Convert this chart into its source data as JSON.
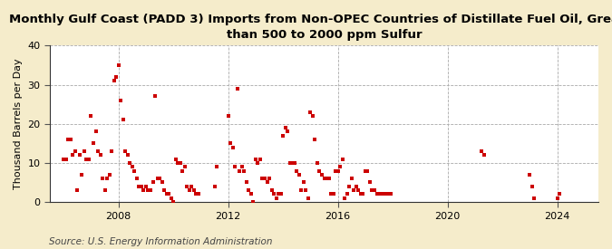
{
  "title": "Monthly Gulf Coast (PADD 3) Imports from Non-OPEC Countries of Distillate Fuel Oil, Greater\nthan 500 to 2000 ppm Sulfur",
  "ylabel": "Thousand Barrels per Day",
  "source": "Source: U.S. Energy Information Administration",
  "background_color": "#f5eccb",
  "plot_bg_color": "#ffffff",
  "marker_color": "#cc0000",
  "marker_size": 9,
  "ylim": [
    0,
    40
  ],
  "yticks": [
    0,
    10,
    20,
    30,
    40
  ],
  "grid_color": "#aaaaaa",
  "grid_style": "--",
  "data_points": [
    [
      2006.0,
      11
    ],
    [
      2006.083,
      11
    ],
    [
      2006.167,
      16
    ],
    [
      2006.25,
      16
    ],
    [
      2006.333,
      12
    ],
    [
      2006.417,
      13
    ],
    [
      2006.5,
      3
    ],
    [
      2006.583,
      12
    ],
    [
      2006.667,
      7
    ],
    [
      2006.75,
      13
    ],
    [
      2006.833,
      11
    ],
    [
      2006.917,
      11
    ],
    [
      2007.0,
      22
    ],
    [
      2007.083,
      15
    ],
    [
      2007.167,
      18
    ],
    [
      2007.25,
      13
    ],
    [
      2007.333,
      12
    ],
    [
      2007.417,
      6
    ],
    [
      2007.5,
      3
    ],
    [
      2007.583,
      6
    ],
    [
      2007.667,
      7
    ],
    [
      2007.75,
      13
    ],
    [
      2007.833,
      31
    ],
    [
      2007.917,
      32
    ],
    [
      2008.0,
      35
    ],
    [
      2008.083,
      26
    ],
    [
      2008.167,
      21
    ],
    [
      2008.25,
      13
    ],
    [
      2008.333,
      12
    ],
    [
      2008.417,
      10
    ],
    [
      2008.5,
      9
    ],
    [
      2008.583,
      8
    ],
    [
      2008.667,
      6
    ],
    [
      2008.75,
      4
    ],
    [
      2008.833,
      4
    ],
    [
      2008.917,
      3
    ],
    [
      2009.0,
      4
    ],
    [
      2009.083,
      3
    ],
    [
      2009.167,
      3
    ],
    [
      2009.25,
      5
    ],
    [
      2009.333,
      27
    ],
    [
      2009.417,
      6
    ],
    [
      2009.5,
      6
    ],
    [
      2009.583,
      5
    ],
    [
      2009.667,
      3
    ],
    [
      2009.75,
      2
    ],
    [
      2009.833,
      2
    ],
    [
      2009.917,
      1
    ],
    [
      2010.0,
      0
    ],
    [
      2010.083,
      11
    ],
    [
      2010.167,
      10
    ],
    [
      2010.25,
      10
    ],
    [
      2010.333,
      8
    ],
    [
      2010.417,
      9
    ],
    [
      2010.5,
      4
    ],
    [
      2010.583,
      3
    ],
    [
      2010.667,
      4
    ],
    [
      2010.75,
      3
    ],
    [
      2010.833,
      2
    ],
    [
      2010.917,
      2
    ],
    [
      2011.5,
      4
    ],
    [
      2011.583,
      9
    ],
    [
      2012.0,
      22
    ],
    [
      2012.083,
      15
    ],
    [
      2012.167,
      14
    ],
    [
      2012.25,
      9
    ],
    [
      2012.333,
      29
    ],
    [
      2012.417,
      8
    ],
    [
      2012.5,
      9
    ],
    [
      2012.583,
      8
    ],
    [
      2012.667,
      5
    ],
    [
      2012.75,
      3
    ],
    [
      2012.833,
      2
    ],
    [
      2012.917,
      0
    ],
    [
      2013.0,
      11
    ],
    [
      2013.083,
      10
    ],
    [
      2013.167,
      11
    ],
    [
      2013.25,
      6
    ],
    [
      2013.333,
      6
    ],
    [
      2013.417,
      5
    ],
    [
      2013.5,
      6
    ],
    [
      2013.583,
      3
    ],
    [
      2013.667,
      2
    ],
    [
      2013.75,
      1
    ],
    [
      2013.833,
      2
    ],
    [
      2013.917,
      2
    ],
    [
      2014.0,
      17
    ],
    [
      2014.083,
      19
    ],
    [
      2014.167,
      18
    ],
    [
      2014.25,
      10
    ],
    [
      2014.333,
      10
    ],
    [
      2014.417,
      10
    ],
    [
      2014.5,
      8
    ],
    [
      2014.583,
      7
    ],
    [
      2014.667,
      3
    ],
    [
      2014.75,
      5
    ],
    [
      2014.833,
      3
    ],
    [
      2014.917,
      1
    ],
    [
      2015.0,
      23
    ],
    [
      2015.083,
      22
    ],
    [
      2015.167,
      16
    ],
    [
      2015.25,
      10
    ],
    [
      2015.333,
      8
    ],
    [
      2015.417,
      7
    ],
    [
      2015.5,
      6
    ],
    [
      2015.583,
      6
    ],
    [
      2015.667,
      6
    ],
    [
      2015.75,
      2
    ],
    [
      2015.833,
      2
    ],
    [
      2015.917,
      8
    ],
    [
      2016.0,
      8
    ],
    [
      2016.083,
      9
    ],
    [
      2016.167,
      11
    ],
    [
      2016.25,
      1
    ],
    [
      2016.333,
      2
    ],
    [
      2016.417,
      4
    ],
    [
      2016.5,
      6
    ],
    [
      2016.583,
      3
    ],
    [
      2016.667,
      4
    ],
    [
      2016.75,
      3
    ],
    [
      2016.833,
      2
    ],
    [
      2016.917,
      2
    ],
    [
      2017.0,
      8
    ],
    [
      2017.083,
      8
    ],
    [
      2017.167,
      5
    ],
    [
      2017.25,
      3
    ],
    [
      2017.333,
      3
    ],
    [
      2017.417,
      2
    ],
    [
      2017.5,
      2
    ],
    [
      2017.583,
      2
    ],
    [
      2017.667,
      2
    ],
    [
      2017.75,
      2
    ],
    [
      2017.833,
      2
    ],
    [
      2017.917,
      2
    ],
    [
      2021.25,
      13
    ],
    [
      2021.333,
      12
    ],
    [
      2023.0,
      7
    ],
    [
      2023.083,
      4
    ],
    [
      2023.167,
      1
    ],
    [
      2024.0,
      1
    ],
    [
      2024.083,
      2
    ]
  ],
  "xtick_years": [
    2008,
    2012,
    2016,
    2020,
    2024
  ],
  "xlim_start": 2005.5,
  "xlim_end": 2025.5,
  "title_fontsize": 9.5,
  "label_fontsize": 8,
  "tick_fontsize": 8,
  "source_fontsize": 7.5
}
